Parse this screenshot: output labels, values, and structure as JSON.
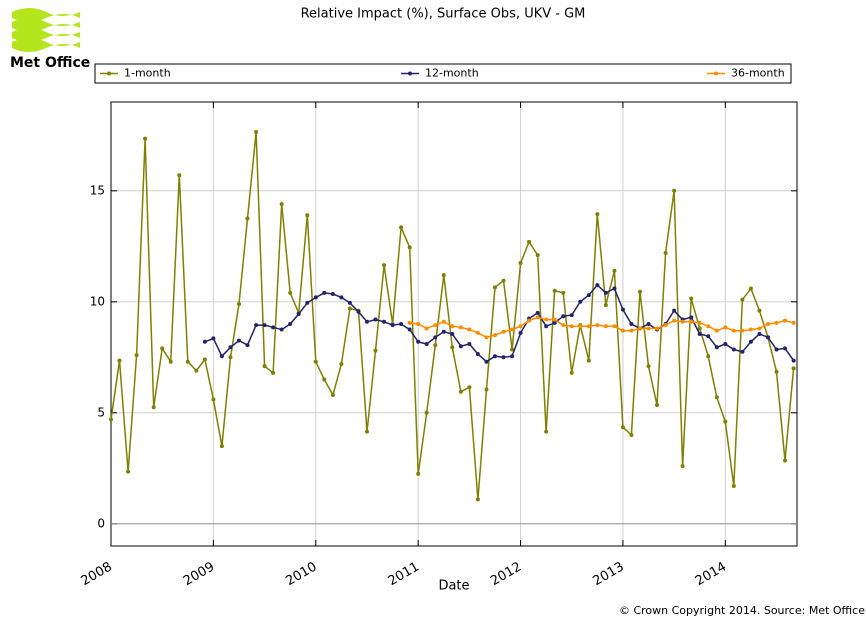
{
  "brand": "Met Office",
  "footer": "© Crown Copyright 2014. Source: Met Office",
  "chart_data": {
    "type": "line",
    "title": "Relative Impact (%), Surface Obs, UKV - GM",
    "x_label": "Date",
    "x": [
      2008,
      2008.083,
      2008.167,
      2008.25,
      2008.333,
      2008.417,
      2008.5,
      2008.583,
      2008.667,
      2008.75,
      2008.833,
      2008.917,
      2009,
      2009.083,
      2009.167,
      2009.25,
      2009.333,
      2009.417,
      2009.5,
      2009.583,
      2009.667,
      2009.75,
      2009.833,
      2009.917,
      2010,
      2010.083,
      2010.167,
      2010.25,
      2010.333,
      2010.417,
      2010.5,
      2010.583,
      2010.667,
      2010.75,
      2010.833,
      2010.917,
      2011,
      2011.083,
      2011.167,
      2011.25,
      2011.333,
      2011.417,
      2011.5,
      2011.583,
      2011.667,
      2011.75,
      2011.833,
      2011.917,
      2012,
      2012.083,
      2012.167,
      2012.25,
      2012.333,
      2012.417,
      2012.5,
      2012.583,
      2012.667,
      2012.75,
      2012.833,
      2012.917,
      2013,
      2013.083,
      2013.167,
      2013.25,
      2013.333,
      2013.417,
      2013.5,
      2013.583,
      2013.667,
      2013.75,
      2013.833,
      2013.917,
      2014,
      2014.083,
      2014.167,
      2014.25,
      2014.333,
      2014.417,
      2014.5,
      2014.583,
      2014.667
    ],
    "series": [
      {
        "name": "1-month",
        "color": "#808000",
        "values": [
          4.7,
          7.35,
          2.35,
          7.6,
          17.35,
          5.25,
          7.9,
          7.3,
          15.7,
          7.3,
          6.9,
          7.4,
          5.6,
          3.5,
          7.5,
          9.9,
          13.75,
          17.65,
          7.1,
          6.8,
          14.4,
          10.4,
          9.5,
          13.9,
          7.3,
          6.5,
          5.8,
          7.2,
          9.7,
          9.6,
          4.15,
          7.8,
          11.65,
          9.0,
          13.35,
          12.45,
          2.25,
          5.0,
          8.05,
          11.2,
          7.95,
          5.95,
          6.15,
          1.1,
          6.05,
          10.65,
          10.95,
          7.85,
          11.75,
          12.7,
          12.1,
          4.15,
          10.5,
          10.4,
          6.8,
          8.95,
          7.35,
          13.95,
          9.85,
          11.4,
          4.35,
          4.0,
          10.45,
          7.1,
          5.35,
          12.2,
          15.0,
          2.6,
          10.15,
          8.8,
          7.55,
          5.7,
          4.6,
          1.7,
          10.1,
          10.6,
          9.6,
          8.4,
          6.85,
          2.85,
          7.0
        ]
      },
      {
        "name": "12-month",
        "color": "#23236b",
        "values": [
          null,
          null,
          null,
          null,
          null,
          null,
          null,
          null,
          null,
          null,
          null,
          8.2,
          8.35,
          7.55,
          7.95,
          8.25,
          8.05,
          8.95,
          8.95,
          8.85,
          8.75,
          9.0,
          9.45,
          9.95,
          10.2,
          10.4,
          10.35,
          10.2,
          9.95,
          9.55,
          9.1,
          9.2,
          9.1,
          8.95,
          9.0,
          8.75,
          8.2,
          8.1,
          8.4,
          8.65,
          8.55,
          8.0,
          8.1,
          7.65,
          7.3,
          7.55,
          7.5,
          7.55,
          8.6,
          9.25,
          9.5,
          8.9,
          9.05,
          9.35,
          9.4,
          10.0,
          10.3,
          10.75,
          10.4,
          10.6,
          9.65,
          9.0,
          8.8,
          9.0,
          8.75,
          9.0,
          9.6,
          9.2,
          9.3,
          8.55,
          8.45,
          7.95,
          8.1,
          7.85,
          7.75,
          8.2,
          8.55,
          8.4,
          7.85,
          7.9,
          7.35
        ]
      },
      {
        "name": "36-month",
        "color": "#ff8c00",
        "values": [
          null,
          null,
          null,
          null,
          null,
          null,
          null,
          null,
          null,
          null,
          null,
          null,
          null,
          null,
          null,
          null,
          null,
          null,
          null,
          null,
          null,
          null,
          null,
          null,
          null,
          null,
          null,
          null,
          null,
          null,
          null,
          null,
          null,
          null,
          null,
          9.05,
          9.0,
          8.8,
          8.95,
          9.1,
          8.9,
          8.85,
          8.75,
          8.6,
          8.4,
          8.5,
          8.65,
          8.75,
          8.9,
          9.15,
          9.3,
          9.2,
          9.2,
          8.95,
          8.9,
          8.9,
          8.9,
          8.95,
          8.9,
          8.9,
          8.7,
          8.7,
          8.8,
          8.8,
          8.8,
          8.95,
          9.15,
          9.1,
          9.1,
          9.05,
          8.9,
          8.7,
          8.85,
          8.7,
          8.7,
          8.75,
          8.8,
          9.0,
          9.05,
          9.15,
          9.05
        ]
      }
    ],
    "xlim": [
      2008,
      2014.7
    ],
    "xticks": [
      2008,
      2009,
      2010,
      2011,
      2012,
      2013,
      2014
    ],
    "ylim": [
      -1,
      19
    ],
    "yticks": [
      0,
      5,
      10,
      15
    ],
    "grid": true,
    "zero_line": true
  }
}
